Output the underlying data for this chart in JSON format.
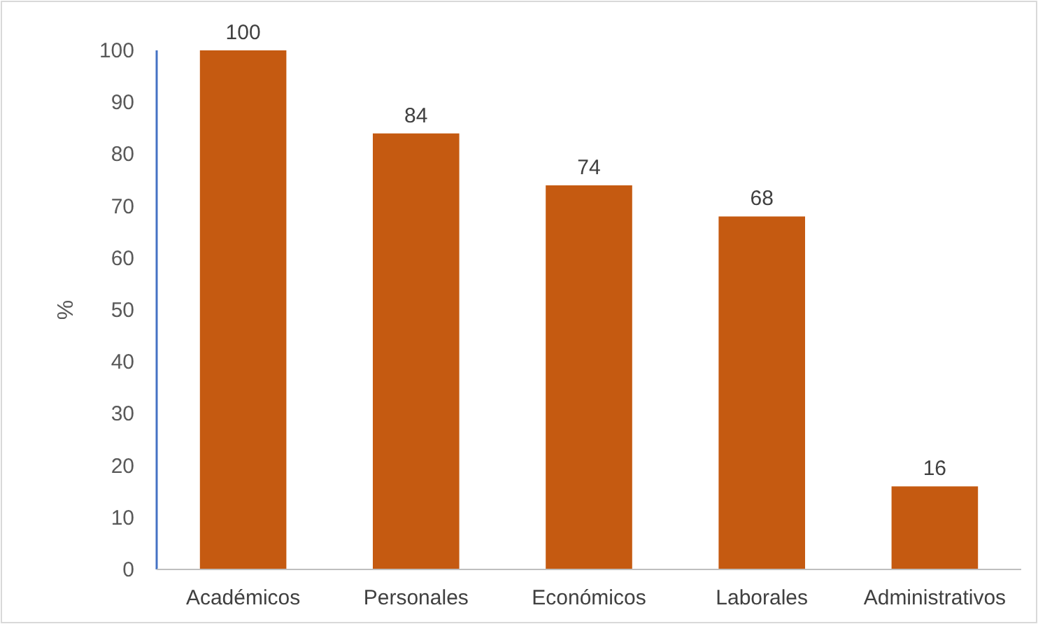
{
  "chart_data": {
    "type": "bar",
    "ylabel": "%",
    "categories": [
      "Académicos",
      "Personales",
      "Económicos",
      "Laborales",
      "Administrativos"
    ],
    "values": [
      100,
      84,
      74,
      68,
      16
    ],
    "color": "#c55a11",
    "ylim": [
      0,
      100
    ],
    "yticks": [
      0,
      10,
      20,
      30,
      40,
      50,
      60,
      70,
      80,
      90,
      100
    ],
    "data_labels": true,
    "grid": false
  }
}
